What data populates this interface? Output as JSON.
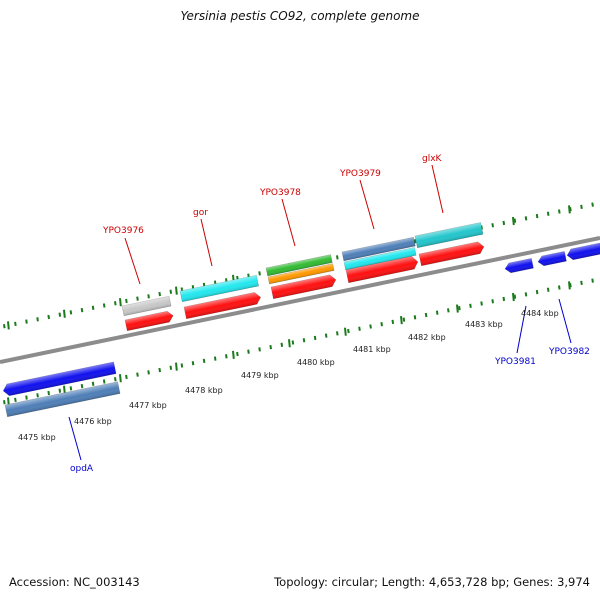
{
  "title": "Yersinia pestis CO92, complete genome",
  "accession_text": "Accession: NC_003143",
  "summary_text": "Topology: circular; Length: 4,653,728 bp; Genes: 3,974",
  "colors": {
    "backbone": "#8c8c8c",
    "tick": "#1b7a1b",
    "label_red": "#cc0000",
    "label_blue": "#0000cc",
    "red": "#ff1111",
    "cyan": "#22e8ee",
    "gray": "#c8c8c8",
    "green": "#33bb33",
    "orange": "#ff9900",
    "steel": "#4f7fb8",
    "teal": "#22c6cc",
    "blue": "#1111ee"
  },
  "scale": {
    "unit": "kbp",
    "ticks": [
      {
        "label": "4475 kbp",
        "pos": 4475
      },
      {
        "label": "4476 kbp",
        "pos": 4476
      },
      {
        "label": "4477 kbp",
        "pos": 4477
      },
      {
        "label": "4478 kbp",
        "pos": 4478
      },
      {
        "label": "4479 kbp",
        "pos": 4479
      },
      {
        "label": "4480 kbp",
        "pos": 4480
      },
      {
        "label": "4481 kbp",
        "pos": 4481
      },
      {
        "label": "4482 kbp",
        "pos": 4482
      },
      {
        "label": "4483 kbp",
        "pos": 4483
      },
      {
        "label": "4484 kbp",
        "pos": 4484
      }
    ]
  },
  "gene_labels": [
    {
      "name": "YPO3976",
      "color": "red"
    },
    {
      "name": "gor",
      "color": "red"
    },
    {
      "name": "YPO3978",
      "color": "red"
    },
    {
      "name": "YPO3979",
      "color": "red"
    },
    {
      "name": "glxK",
      "color": "red"
    },
    {
      "name": "opdA",
      "color": "blue"
    },
    {
      "name": "YPO3981",
      "color": "blue"
    },
    {
      "name": "YPO3982",
      "color": "blue"
    }
  ]
}
